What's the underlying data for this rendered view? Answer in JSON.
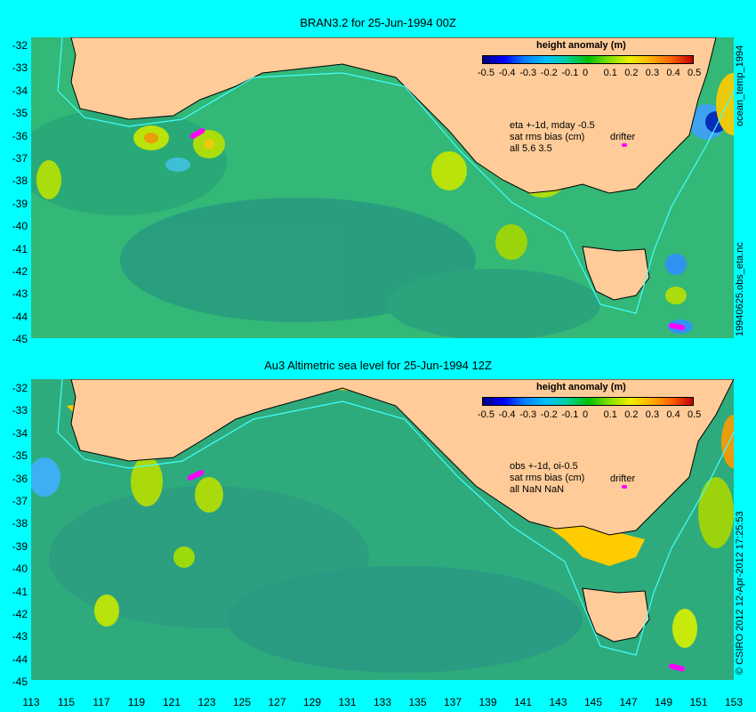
{
  "panels": [
    {
      "title": "BRAN3.2 for 25-Jun-1994 00Z",
      "legend_title": "height anomaly (m)",
      "legend_ticks": [
        "-0.5",
        "-0.4",
        "-0.3",
        "-0.2",
        "-0.1",
        "0",
        "0.1",
        "0.2",
        "0.3",
        "0.4",
        "0.5"
      ],
      "note_lines": [
        "eta +-1d, mday -0.5",
        "sat rms bias (cm)",
        "all 5.6 3.5"
      ],
      "drifter_label": "drifter",
      "side_label_top": "ocean_temp_1994",
      "side_label_bottom": "19940625.obs_eta.nc"
    },
    {
      "title": "Au3 Altimetric sea level  for 25-Jun-1994 12Z",
      "legend_title": "height anomaly (m)",
      "legend_ticks": [
        "-0.5",
        "-0.4",
        "-0.3",
        "-0.2",
        "-0.1",
        "0",
        "0.1",
        "0.2",
        "0.3",
        "0.4",
        "0.5"
      ],
      "note_lines": [
        "obs +-1d, oi-0.5",
        "sat rms bias (cm)",
        "all NaN NaN"
      ],
      "drifter_label": "drifter",
      "side_label": "© CSIRO  2012   12-Apr-2012 17:25:53"
    }
  ],
  "latitude_labels": [
    "-32",
    "-33",
    "-34",
    "-35",
    "-36",
    "-37",
    "-38",
    "-39",
    "-40",
    "-41",
    "-42",
    "-43",
    "-44",
    "-45"
  ],
  "longitude_labels": [
    "113",
    "115",
    "117",
    "119",
    "121",
    "123",
    "125",
    "127",
    "129",
    "131",
    "133",
    "135",
    "137",
    "139",
    "141",
    "143",
    "145",
    "147",
    "149",
    "151",
    "153"
  ],
  "colors": {
    "background": "#00ffff",
    "land": "#ffcc99",
    "ocean_base": "#33b877",
    "colorbar": [
      "#000080",
      "#0000ff",
      "#0080ff",
      "#00c0ff",
      "#00d0a0",
      "#00c000",
      "#80e000",
      "#f0f000",
      "#ffb000",
      "#ff6000",
      "#c00000"
    ]
  }
}
